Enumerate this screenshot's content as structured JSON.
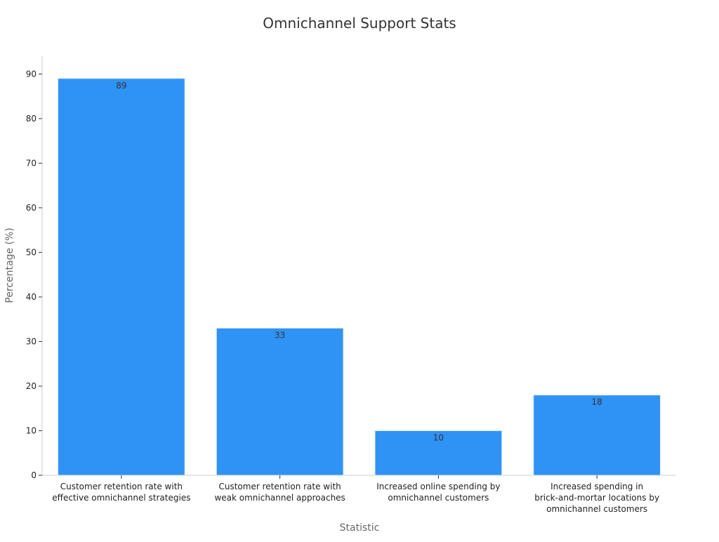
{
  "chart_data": {
    "type": "bar",
    "title": "Omnichannel Support Stats",
    "xlabel": "Statistic",
    "ylabel": "Percentage (%)",
    "categories": [
      [
        "Customer retention rate with",
        "effective omnichannel strategies"
      ],
      [
        "Customer retention rate with",
        "weak omnichannel approaches"
      ],
      [
        "Increased online spending by",
        "omnichannel customers"
      ],
      [
        "Increased spending in",
        "brick-and-mortar locations by",
        "omnichannel customers"
      ]
    ],
    "values": [
      89,
      33,
      10,
      18
    ],
    "ylim": [
      0,
      94
    ],
    "yticks": [
      0,
      10,
      20,
      30,
      40,
      50,
      60,
      70,
      80,
      90
    ],
    "bar_color": "#2f92f5",
    "grid": false,
    "legend": "none"
  }
}
